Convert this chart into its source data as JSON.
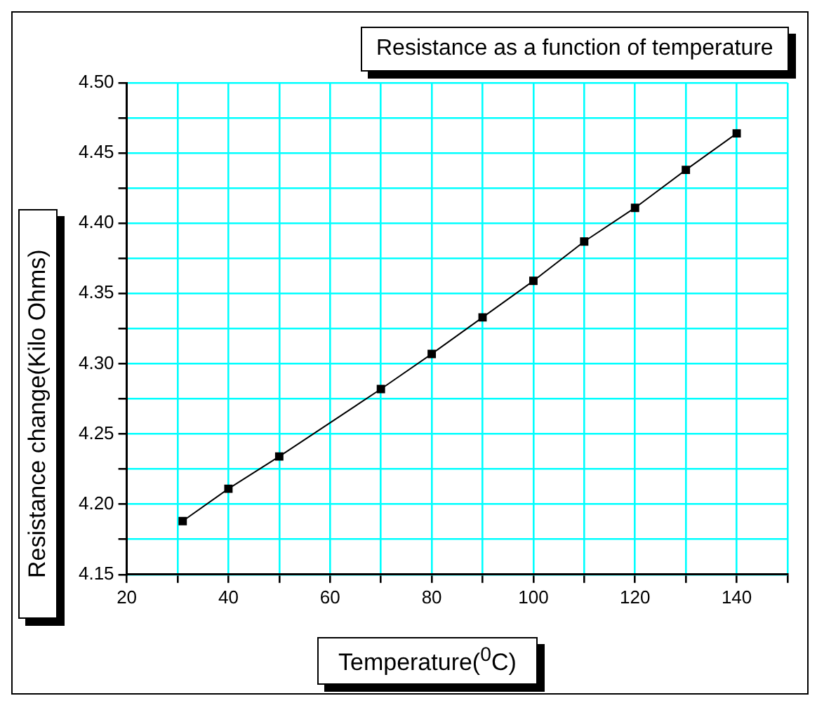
{
  "chart_data": {
    "type": "line",
    "title": "Resistance as a function of temperature",
    "xlabel": "Temperature($^{0}$C)",
    "ylabel": "Resistance change(Kilo Ohms)",
    "x": [
      31,
      40,
      50,
      70,
      80,
      90,
      100,
      110,
      120,
      130,
      140
    ],
    "series": [
      {
        "color": "#000000",
        "values": [
          4.188,
          4.211,
          4.234,
          4.282,
          4.307,
          4.333,
          4.359,
          4.387,
          4.411,
          4.438,
          4.464
        ]
      }
    ],
    "xlim": [
      20,
      150
    ],
    "xticks": [
      20,
      {
        "value": 30,
        "label": null
      },
      40,
      {
        "value": 50,
        "label": null
      },
      60,
      {
        "value": 70,
        "label": null
      },
      80,
      {
        "value": 90,
        "label": null
      },
      100,
      {
        "value": 110,
        "label": null
      },
      120,
      {
        "value": 130,
        "label": null
      },
      140,
      {
        "value": 150,
        "label": null
      }
    ],
    "ylim": [
      4.15,
      4.5
    ],
    "yticks": [
      {
        "value": 4.15,
        "label": "4.15"
      },
      {
        "value": 4.175,
        "label": null
      },
      {
        "value": 4.2,
        "label": "4.20"
      },
      {
        "value": 4.225,
        "label": null
      },
      {
        "value": 4.25,
        "label": "4.25"
      },
      {
        "value": 4.275,
        "label": null
      },
      {
        "value": 4.3,
        "label": "4.30"
      },
      {
        "value": 4.325,
        "label": null
      },
      {
        "value": 4.35,
        "label": "4.35"
      },
      {
        "value": 4.375,
        "label": null
      },
      {
        "value": 4.4,
        "label": "4.40"
      },
      {
        "value": 4.425,
        "label": null
      },
      {
        "value": 4.45,
        "label": "4.45"
      },
      {
        "value": 4.475,
        "label": null
      },
      {
        "value": 4.5,
        "label": "4.50"
      }
    ],
    "grid": true,
    "legend": false,
    "marker": "square",
    "line_style": "solid"
  }
}
